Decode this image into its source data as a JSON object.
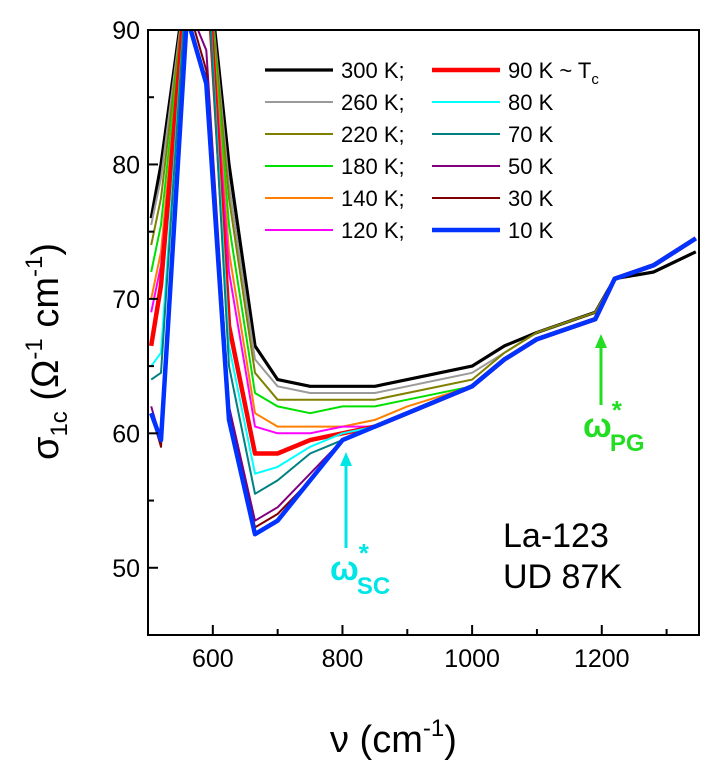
{
  "chart_data": {
    "type": "line",
    "xlabel": {
      "main": "ν (cm",
      "sup": "-1",
      "tail": ")"
    },
    "ylabel": {
      "sigma": "σ",
      "sub": "1c",
      "open": " (Ω",
      "sup1": "-1",
      "mid": " cm",
      "sup2": "-1",
      "tail": ")"
    },
    "xlim": [
      500,
      1350
    ],
    "ylim": [
      45,
      90
    ],
    "x_ticks": [
      600,
      800,
      1000,
      1200
    ],
    "x_ticks_unlabeled": [
      700,
      900,
      1100,
      1300
    ],
    "y_ticks": [
      50,
      60,
      70,
      80,
      90
    ],
    "grid": false,
    "legend_position": "top-right",
    "annotations": {
      "sample_line1": "La-123",
      "sample_line2": "UD 87K",
      "omega_sc": {
        "symbol": "ω",
        "star": "*",
        "sub": "SC",
        "x": 800,
        "color": "#00e5e5"
      },
      "omega_pg": {
        "symbol": "ω",
        "star": "*",
        "sub": "PG",
        "x": 1195,
        "color": "#22dd22"
      }
    },
    "tc_label": {
      "main": "90 K ~ T",
      "sub": "c"
    },
    "series": [
      {
        "name": "300 K;",
        "color": "#000000",
        "width": 3.2,
        "y": [
          76,
          80,
          94,
          96,
          80,
          66.5,
          64,
          63.5,
          63.5,
          63.5,
          64,
          65,
          66.5,
          67.5,
          69,
          71.5,
          72,
          73.5
        ]
      },
      {
        "name": "260 K;",
        "color": "#9a9a9a",
        "width": 2,
        "y": [
          75.5,
          79,
          94,
          96,
          78.5,
          65.5,
          63.5,
          63,
          63,
          63,
          63.5,
          64.5,
          66,
          67.5,
          69,
          71.5,
          72.5,
          74.5
        ]
      },
      {
        "name": "220 K;",
        "color": "#808000",
        "width": 2,
        "y": [
          74,
          77.5,
          94,
          96,
          77.5,
          64.5,
          62.5,
          62.5,
          62.5,
          62.5,
          63,
          64,
          66,
          67.5,
          69,
          71.5,
          72.5,
          74.5
        ]
      },
      {
        "name": "180 K;",
        "color": "#00e000",
        "width": 2,
        "y": [
          72,
          75.5,
          94,
          96,
          75.5,
          63,
          62,
          61.5,
          62,
          62,
          62.5,
          63.5,
          65.5,
          67,
          68.5,
          71.5,
          72.5,
          74.5
        ]
      },
      {
        "name": "140 K;",
        "color": "#ff8000",
        "width": 2,
        "y": [
          70,
          73.5,
          94,
          96,
          73.5,
          61.5,
          60.5,
          60.5,
          60.5,
          61,
          62,
          63.5,
          65.5,
          67,
          68.5,
          71.5,
          72.5,
          74.5
        ]
      },
      {
        "name": "120 K;",
        "color": "#ff00ff",
        "width": 2,
        "y": [
          69,
          72.5,
          94,
          96,
          72,
          60.5,
          60,
          60,
          60.5,
          60.5,
          61.5,
          63.5,
          65.5,
          67,
          68.5,
          71.5,
          72.5,
          74.5
        ]
      },
      {
        "name": "90 K ~ Tc",
        "color": "#ff0000",
        "width": 4.5,
        "y": [
          66.5,
          71,
          94,
          96,
          68,
          58.5,
          58.5,
          59.5,
          60,
          60.5,
          61.5,
          63.5,
          65.5,
          67,
          68.5,
          71.5,
          72.5,
          74.5
        ]
      },
      {
        "name": "80 K",
        "color": "#00ffff",
        "width": 2,
        "y": [
          65,
          66,
          94,
          96,
          66.5,
          57,
          57.5,
          59,
          60,
          60.5,
          61.5,
          63.5,
          65.5,
          67,
          68.5,
          71.5,
          72.5,
          74.5
        ]
      },
      {
        "name": "70 K",
        "color": "#008080",
        "width": 2,
        "y": [
          64,
          64.5,
          94,
          96,
          65,
          55.5,
          56.5,
          58.5,
          59.5,
          60.5,
          61.5,
          63.5,
          65.5,
          67,
          68.5,
          71.5,
          72.5,
          74.5
        ]
      },
      {
        "name": "50 K",
        "color": "#800080",
        "width": 2,
        "y": [
          62,
          59.5,
          92,
          88.5,
          62,
          53.5,
          54.5,
          57,
          59.5,
          60.5,
          61.5,
          63.5,
          65.5,
          67,
          68.5,
          71.5,
          72.5,
          74.5
        ]
      },
      {
        "name": "30 K",
        "color": "#800000",
        "width": 2,
        "y": [
          61.5,
          59,
          92,
          87,
          61.5,
          53,
          54,
          56.5,
          59.5,
          60.5,
          61.5,
          63.5,
          65.5,
          67,
          68.5,
          71.5,
          72.5,
          74.5
        ]
      },
      {
        "name": "10 K",
        "color": "#0033ff",
        "width": 4.5,
        "y": [
          61.5,
          59.5,
          91,
          86,
          61,
          52.5,
          53.5,
          56.5,
          59.5,
          60.5,
          61.5,
          63.5,
          65.5,
          67,
          68.5,
          71.5,
          72.5,
          74.5
        ]
      }
    ],
    "x": [
      505,
      520,
      560,
      590,
      625,
      665,
      700,
      750,
      800,
      850,
      900,
      1000,
      1050,
      1100,
      1190,
      1220,
      1280,
      1345
    ]
  }
}
